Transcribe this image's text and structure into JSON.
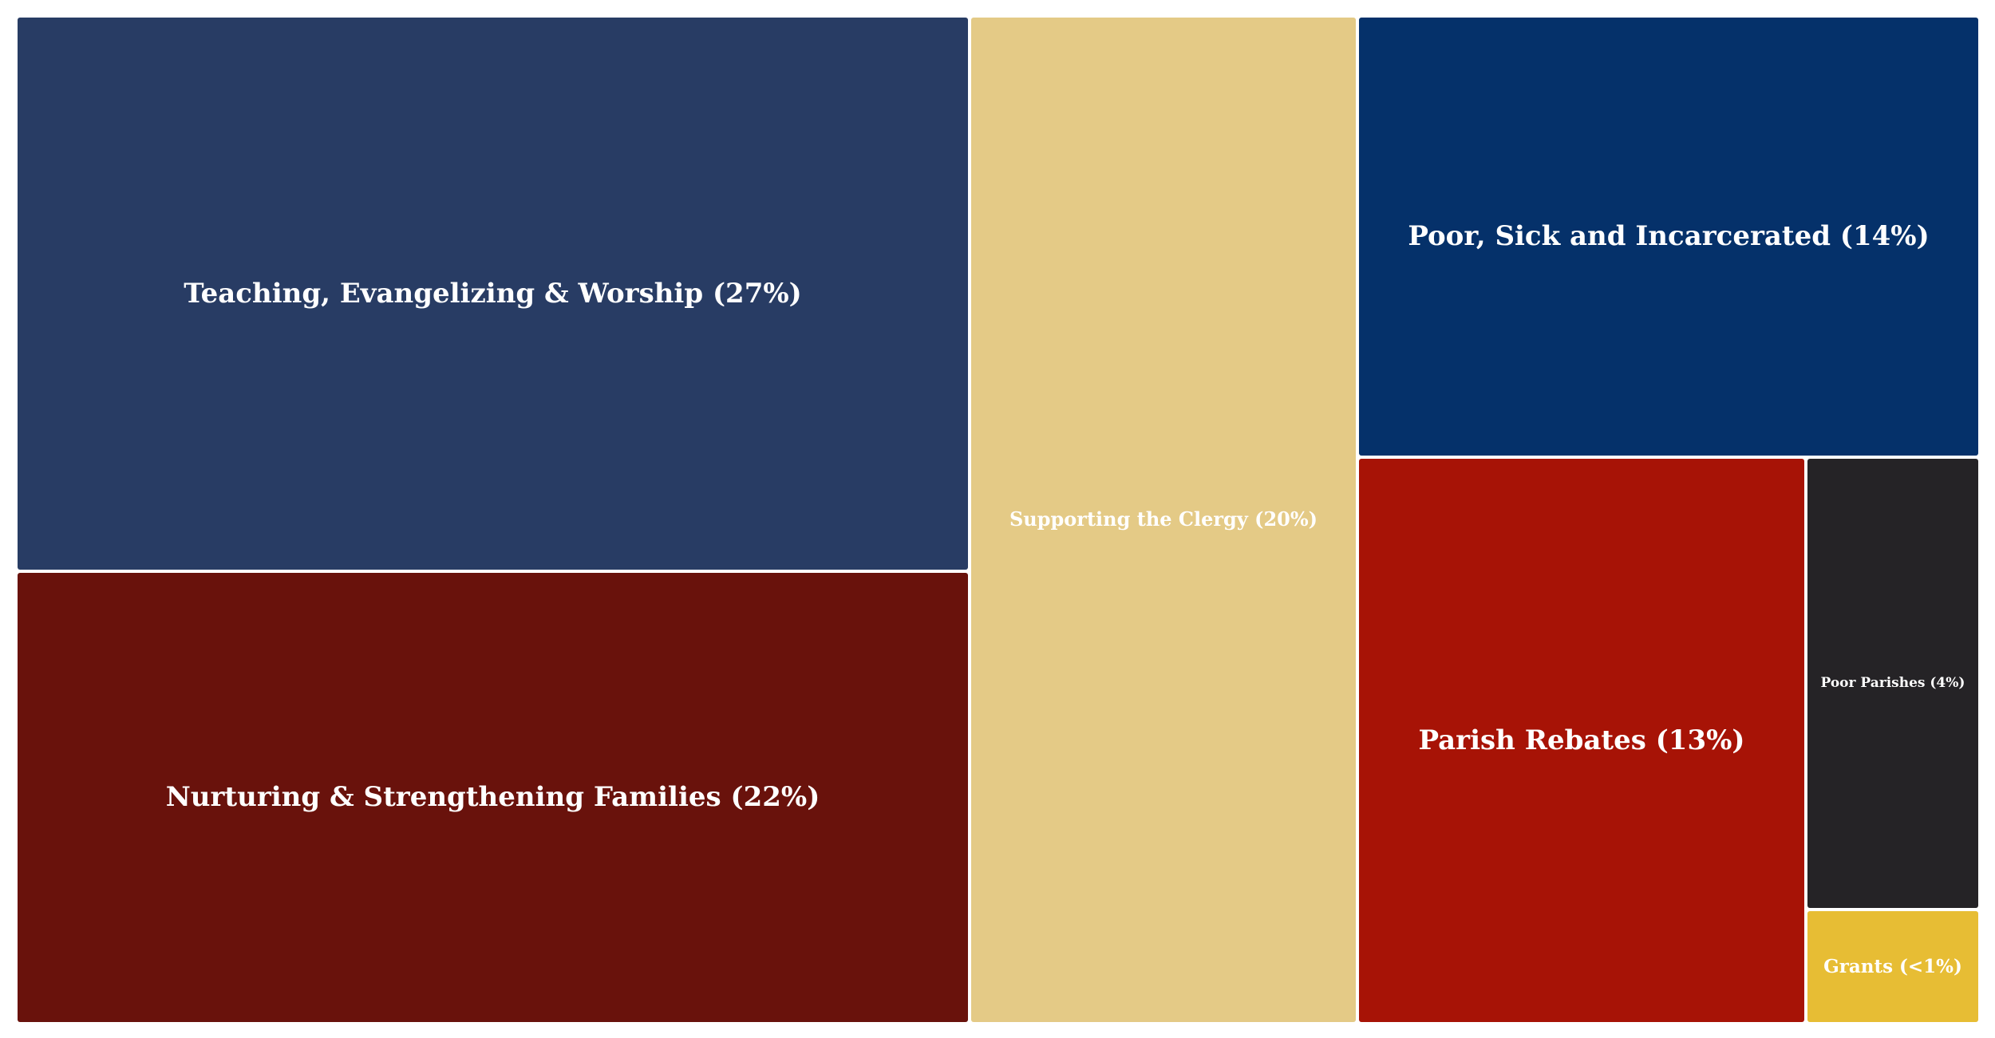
{
  "chart_data": {
    "type": "treemap",
    "title": "",
    "items": [
      {
        "label": "Teaching, Evangelizing & Worship (27%)",
        "value": 27,
        "color": "#283c64"
      },
      {
        "label": "Nurturing & Strengthening Families (22%)",
        "value": 22,
        "color": "#69120c"
      },
      {
        "label": "Supporting the Clergy (20%)",
        "value": 20,
        "color": "#e4ca86"
      },
      {
        "label": "Poor, Sick and Incarcerated (14%)",
        "value": 14,
        "color": "#05316a"
      },
      {
        "label": "Parish Rebates (13%)",
        "value": 13,
        "color": "#a71306"
      },
      {
        "label": "Poor Parishes (4%)",
        "value": 4,
        "color": "#252326"
      },
      {
        "label": "Grants (<1%)",
        "value": 1,
        "color": "#e7bd34"
      }
    ]
  }
}
